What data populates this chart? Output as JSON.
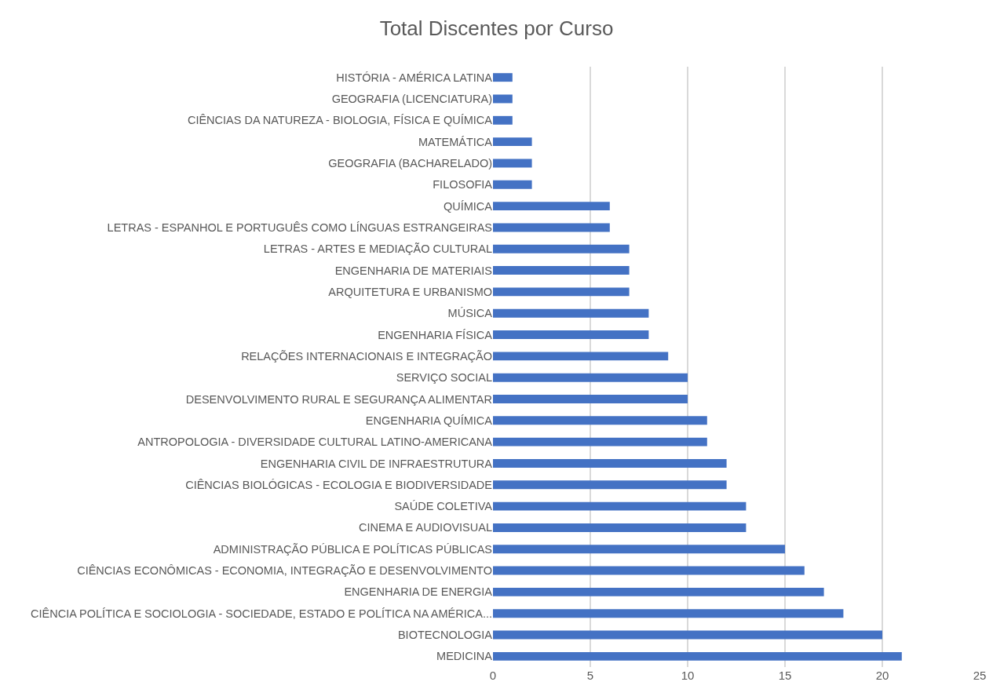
{
  "chart_data": {
    "type": "bar",
    "title": "Total Discentes por Curso",
    "orientation": "horizontal",
    "categories": [
      "HISTÓRIA - AMÉRICA LATINA",
      "GEOGRAFIA (LICENCIATURA)",
      "CIÊNCIAS DA NATUREZA - BIOLOGIA, FÍSICA E QUÍMICA",
      "MATEMÁTICA",
      "GEOGRAFIA (BACHARELADO)",
      "FILOSOFIA",
      "QUÍMICA",
      "LETRAS - ESPANHOL E PORTUGUÊS COMO LÍNGUAS ESTRANGEIRAS",
      "LETRAS - ARTES E MEDIAÇÃO CULTURAL",
      "ENGENHARIA DE MATERIAIS",
      "ARQUITETURA E URBANISMO",
      "MÚSICA",
      "ENGENHARIA FÍSICA",
      "RELAÇÕES INTERNACIONAIS E INTEGRAÇÃO",
      "SERVIÇO SOCIAL",
      "DESENVOLVIMENTO RURAL E SEGURANÇA ALIMENTAR",
      "ENGENHARIA QUÍMICA",
      "ANTROPOLOGIA - DIVERSIDADE CULTURAL LATINO-AMERICANA",
      "ENGENHARIA CIVIL DE INFRAESTRUTURA",
      "CIÊNCIAS BIOLÓGICAS - ECOLOGIA E BIODIVERSIDADE",
      "SAÚDE COLETIVA",
      "CINEMA E AUDIOVISUAL",
      "ADMINISTRAÇÃO PÚBLICA E POLÍTICAS PÚBLICAS",
      "CIÊNCIAS ECONÔMICAS - ECONOMIA, INTEGRAÇÃO E DESENVOLVIMENTO",
      "ENGENHARIA DE ENERGIA",
      "CIÊNCIA POLÍTICA E SOCIOLOGIA - SOCIEDADE, ESTADO E POLÍTICA NA AMÉRICA...",
      "BIOTECNOLOGIA",
      "MEDICINA"
    ],
    "values": [
      1,
      1,
      1,
      2,
      2,
      2,
      6,
      6,
      7,
      7,
      7,
      8,
      8,
      9,
      10,
      10,
      11,
      11,
      12,
      12,
      13,
      13,
      15,
      16,
      17,
      18,
      20,
      21
    ],
    "color": "#4472c4",
    "xlim": [
      0,
      25
    ],
    "xticks": [
      0,
      5,
      10,
      15,
      20,
      25
    ],
    "grid": "x"
  }
}
